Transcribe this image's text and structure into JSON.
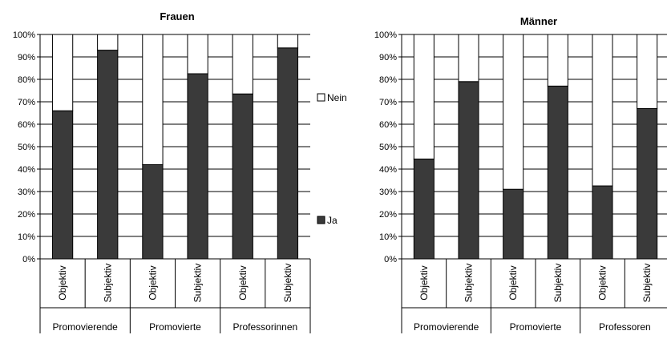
{
  "chart_data": [
    {
      "type": "bar",
      "stacked": true,
      "percent": true,
      "title": "Frauen",
      "ylim": [
        0,
        100
      ],
      "yticks": [
        "0%",
        "10%",
        "20%",
        "30%",
        "40%",
        "50%",
        "60%",
        "70%",
        "80%",
        "90%",
        "100%"
      ],
      "grid": true,
      "categories": [
        "Objektiv",
        "Subjektiv",
        "Objektiv",
        "Subjektiv",
        "Objektiv",
        "Subjektiv"
      ],
      "groups": [
        "Promovierende",
        "Promovierte",
        "Professorinnen"
      ],
      "series": [
        {
          "name": "Ja",
          "color": "#3a3a3a",
          "values": [
            66,
            93,
            42,
            82.5,
            73.5,
            94
          ]
        },
        {
          "name": "Nein",
          "color": "#ffffff",
          "values": [
            34,
            7,
            58,
            17.5,
            26.5,
            6
          ]
        }
      ],
      "legend": "right"
    },
    {
      "type": "bar",
      "stacked": true,
      "percent": true,
      "title": "Männer",
      "ylim": [
        0,
        100
      ],
      "yticks": [
        "0%",
        "10%",
        "20%",
        "30%",
        "40%",
        "50%",
        "60%",
        "70%",
        "80%",
        "90%",
        "100%"
      ],
      "grid": true,
      "categories": [
        "Objektiv",
        "Subjektiv",
        "Objektiv",
        "Subjektiv",
        "Objektiv",
        "Subjektiv"
      ],
      "groups": [
        "Promovierende",
        "Promovierte",
        "Professoren"
      ],
      "series": [
        {
          "name": "Ja",
          "color": "#3a3a3a",
          "values": [
            44.5,
            79,
            31,
            77,
            32.5,
            67
          ]
        },
        {
          "name": "Nein",
          "color": "#ffffff",
          "values": [
            55.5,
            21,
            69,
            23,
            67.5,
            33
          ]
        }
      ]
    }
  ]
}
